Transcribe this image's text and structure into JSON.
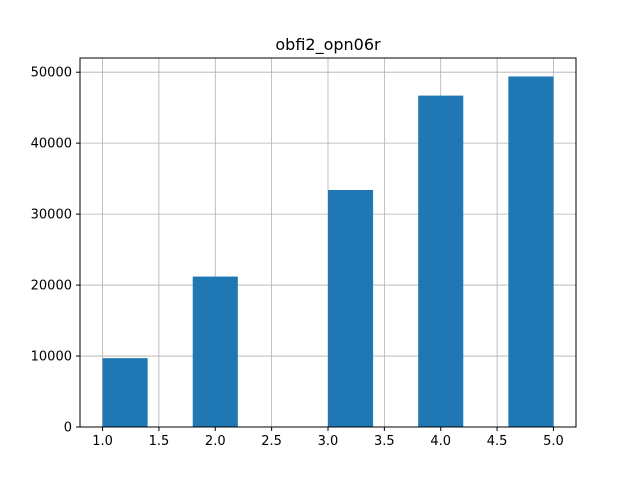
{
  "chart_data": {
    "type": "bar",
    "title": "obfi2_opn06r",
    "xlabel": "",
    "ylabel": "",
    "bar_color": "#1f77b4",
    "grid": true,
    "xlim": [
      0.8,
      5.2
    ],
    "ylim": [
      0,
      52000
    ],
    "x_ticks": [
      1.0,
      1.5,
      2.0,
      2.5,
      3.0,
      3.5,
      4.0,
      4.5,
      5.0
    ],
    "x_tick_labels": [
      "1.0",
      "1.5",
      "2.0",
      "2.5",
      "3.0",
      "3.5",
      "4.0",
      "4.5",
      "5.0"
    ],
    "y_ticks": [
      0,
      10000,
      20000,
      30000,
      40000,
      50000
    ],
    "y_tick_labels": [
      "0",
      "10000",
      "20000",
      "30000",
      "40000",
      "50000"
    ],
    "bins": [
      {
        "x0": 1.0,
        "x1": 1.4,
        "value": 9700
      },
      {
        "x0": 1.4,
        "x1": 1.8,
        "value": 0
      },
      {
        "x0": 1.8,
        "x1": 2.2,
        "value": 21200
      },
      {
        "x0": 2.2,
        "x1": 2.6,
        "value": 0
      },
      {
        "x0": 2.6,
        "x1": 3.0,
        "value": 0
      },
      {
        "x0": 3.0,
        "x1": 3.4,
        "value": 33400
      },
      {
        "x0": 3.4,
        "x1": 3.8,
        "value": 0
      },
      {
        "x0": 3.8,
        "x1": 4.2,
        "value": 46700
      },
      {
        "x0": 4.2,
        "x1": 4.6,
        "value": 0
      },
      {
        "x0": 4.6,
        "x1": 5.0,
        "value": 49400
      }
    ]
  }
}
